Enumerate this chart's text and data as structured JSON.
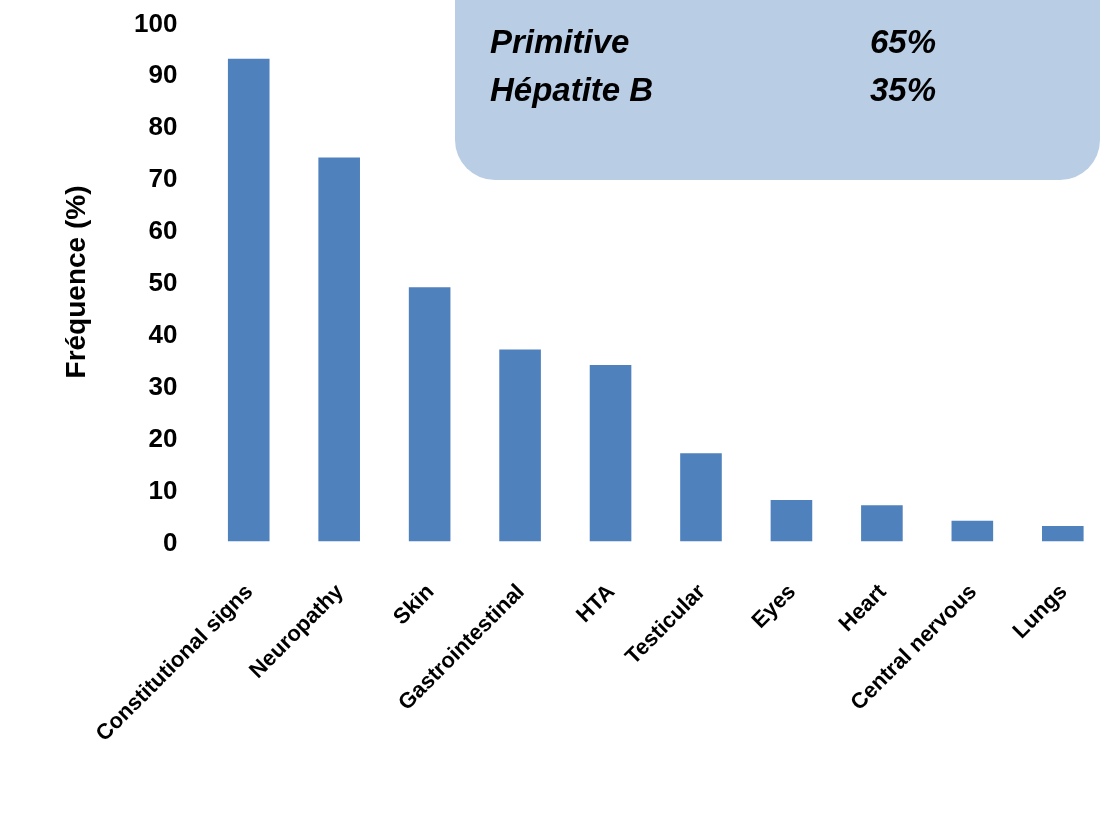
{
  "chart_data": {
    "type": "bar",
    "ylabel": "Fréquence (%)",
    "categories": [
      "Constitutional signs",
      "Neuropathy",
      "Skin",
      "Gastrointestinal",
      "HTA",
      "Testicular",
      "Eyes",
      "Heart",
      "Central nervous",
      "Lungs"
    ],
    "values": [
      93,
      74,
      49,
      37,
      34,
      17,
      8,
      7,
      4,
      3
    ],
    "color": "#4f81bd",
    "ylim": [
      0,
      100
    ],
    "yticks": [
      0,
      10,
      20,
      30,
      40,
      50,
      60,
      70,
      80,
      90,
      100
    ],
    "grid": false,
    "annotations": [
      "Primitive",
      "65%",
      "Hépatite B",
      "35%"
    ]
  }
}
